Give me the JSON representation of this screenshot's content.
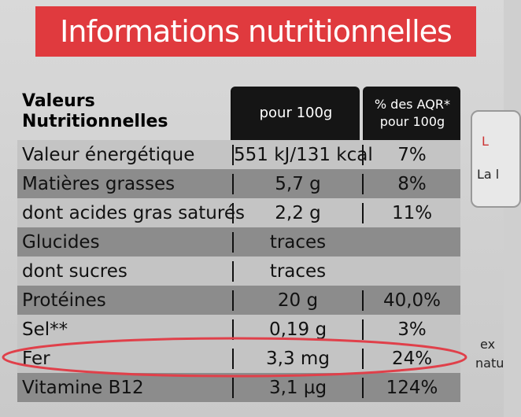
{
  "banner": {
    "title": "Informations nutritionnelles"
  },
  "table": {
    "header": [
      [
        "Valeurs",
        "Nutritionnelles"
      ],
      [
        "pour 100g"
      ],
      [
        "% des AQR*",
        "pour 100g"
      ]
    ],
    "rows": [
      [
        "Valeur énergétique",
        "551 kJ/131 kcal",
        "7%"
      ],
      [
        "Matières grasses",
        "5,7 g",
        "8%"
      ],
      [
        "dont acides gras saturés",
        "2,2 g",
        "11%"
      ],
      [
        "Glucides",
        "traces"
      ],
      [
        "dont sucres",
        "traces"
      ],
      [
        "Protéines",
        "20 g",
        "40,0%"
      ],
      [
        "Sel**",
        "0,19 g",
        "3%"
      ],
      [
        "Fer",
        "3,3 mg",
        "24%"
      ],
      [
        "Vitamine B12",
        "3,1 µg",
        "124%"
      ]
    ]
  },
  "side": [
    "L",
    "La l",
    "ex",
    "natu"
  ]
}
